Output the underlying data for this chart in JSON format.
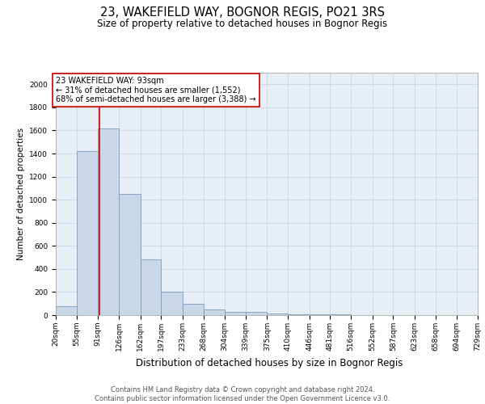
{
  "title": "23, WAKEFIELD WAY, BOGNOR REGIS, PO21 3RS",
  "subtitle": "Size of property relative to detached houses in Bognor Regis",
  "xlabel": "Distribution of detached houses by size in Bognor Regis",
  "ylabel": "Number of detached properties",
  "footer_line1": "Contains HM Land Registry data © Crown copyright and database right 2024.",
  "footer_line2": "Contains public sector information licensed under the Open Government Licence v3.0.",
  "bin_edges": [
    20,
    55,
    91,
    126,
    162,
    197,
    233,
    268,
    304,
    339,
    375,
    410,
    446,
    481,
    516,
    552,
    587,
    623,
    658,
    694,
    729
  ],
  "bar_heights": [
    80,
    1420,
    1620,
    1050,
    480,
    200,
    100,
    50,
    30,
    25,
    15,
    10,
    5,
    4,
    3,
    2,
    1,
    1,
    1,
    0
  ],
  "bar_color": "#c8d8e8",
  "bar_edge_color": "#7a9cbf",
  "property_size": 93,
  "marker_line_color": "#cc0000",
  "annotation_line1": "23 WAKEFIELD WAY: 93sqm",
  "annotation_line2": "← 31% of detached houses are smaller (1,552)",
  "annotation_line3": "68% of semi-detached houses are larger (3,388) →",
  "annotation_box_color": "#ffffff",
  "annotation_box_edge_color": "#cc0000",
  "ylim": [
    0,
    2100
  ],
  "yticks": [
    0,
    200,
    400,
    600,
    800,
    1000,
    1200,
    1400,
    1600,
    1800,
    2000
  ],
  "bg_color": "#ffffff",
  "ax_bg_color": "#e8eef6",
  "grid_color": "#c8d4e8",
  "title_fontsize": 10.5,
  "subtitle_fontsize": 8.5,
  "xlabel_fontsize": 8.5,
  "ylabel_fontsize": 7.5,
  "tick_fontsize": 6.5,
  "annotation_fontsize": 7,
  "footer_fontsize": 6
}
